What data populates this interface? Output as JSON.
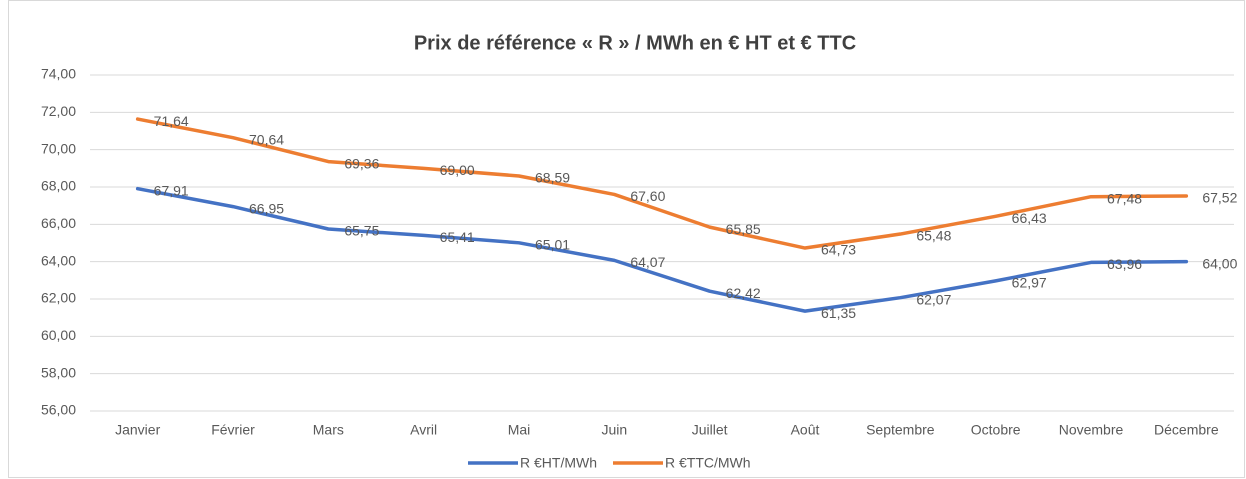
{
  "chart_data": {
    "type": "line",
    "title": "Prix de référence « R » / MWh en € HT et € TTC",
    "categories": [
      "Janvier",
      "Février",
      "Mars",
      "Avril",
      "Mai",
      "Juin",
      "Juillet",
      "Août",
      "Septembre",
      "Octobre",
      "Novembre",
      "Décembre"
    ],
    "series": [
      {
        "name": "R €HT/MWh",
        "color": "#4472c4",
        "values": [
          67.91,
          66.95,
          65.75,
          65.41,
          65.01,
          64.07,
          62.42,
          61.35,
          62.07,
          62.97,
          63.96,
          64.0
        ],
        "value_labels": [
          "67,91",
          "66,95",
          "65,75",
          "65,41",
          "65,01",
          "64,07",
          "62,42",
          "61,35",
          "62,07",
          "62,97",
          "63,96",
          "64,00"
        ]
      },
      {
        "name": "R €TTC/MWh",
        "color": "#ed7d31",
        "values": [
          71.64,
          70.64,
          69.36,
          69.0,
          68.59,
          67.6,
          65.85,
          64.73,
          65.48,
          66.43,
          67.48,
          67.52
        ],
        "value_labels": [
          "71,64",
          "70,64",
          "69,36",
          "69,00",
          "68,59",
          "67,60",
          "65,85",
          "64,73",
          "65,48",
          "66,43",
          "67,48",
          "67,52"
        ]
      }
    ],
    "ylim": [
      56,
      74
    ],
    "yticks": [
      {
        "value": 56,
        "label": "56,00"
      },
      {
        "value": 58,
        "label": "58,00"
      },
      {
        "value": 60,
        "label": "60,00"
      },
      {
        "value": 62,
        "label": "62,00"
      },
      {
        "value": 64,
        "label": "64,00"
      },
      {
        "value": 66,
        "label": "66,00"
      },
      {
        "value": 68,
        "label": "68,00"
      },
      {
        "value": 70,
        "label": "70,00"
      },
      {
        "value": 72,
        "label": "72,00"
      },
      {
        "value": 74,
        "label": "74,00"
      }
    ],
    "grid": true,
    "legend": "bottom"
  }
}
